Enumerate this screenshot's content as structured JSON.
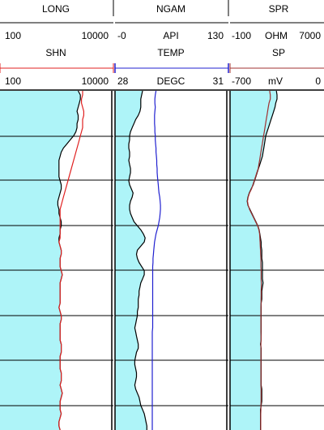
{
  "colors": {
    "fill": "#aef4f8",
    "line_black": "#000000",
    "line_red": "#e02020",
    "line_blue": "#2020d0",
    "line_darkred": "#a03030",
    "grid": "#000000"
  },
  "tracks": [
    {
      "id": "resistivity",
      "curves": [
        {
          "name": "LONG",
          "scale_left": "100",
          "unit": "",
          "scale_right": "10000",
          "color": "#000000"
        },
        {
          "name": "SHN",
          "scale_left": "100",
          "unit": "",
          "scale_right": "10000",
          "color": "#e02020"
        }
      ]
    },
    {
      "id": "gamma-temp",
      "curves": [
        {
          "name": "NGAM",
          "scale_left": "-0",
          "unit": "API",
          "scale_right": "130",
          "color": "#000000"
        },
        {
          "name": "TEMP",
          "scale_left": "28",
          "unit": "DEGC",
          "scale_right": "31",
          "color": "#2020d0"
        }
      ]
    },
    {
      "id": "spr-sp",
      "curves": [
        {
          "name": "SPR",
          "scale_left": "-100",
          "unit": "OHM",
          "scale_right": "7000",
          "color": "#000000"
        },
        {
          "name": "SP",
          "scale_left": "-700",
          "unit": "mV",
          "scale_right": "0",
          "color": "#a03030"
        }
      ]
    }
  ],
  "chart_data": {
    "type": "line",
    "depth_axis": "index (top to bottom)",
    "samples": [
      0,
      5,
      10,
      15,
      20,
      25,
      30,
      35,
      40,
      45,
      50,
      55,
      60,
      65,
      70,
      75,
      80,
      85,
      90,
      95,
      100,
      105,
      110,
      115,
      120,
      125,
      130,
      135,
      140,
      145,
      150,
      155,
      160,
      165,
      170,
      175,
      180,
      185,
      190,
      195,
      200,
      205,
      210,
      215,
      220,
      225,
      230,
      235,
      240,
      245,
      250,
      255,
      260,
      265,
      270,
      275,
      280,
      285,
      290,
      295,
      300,
      305,
      310,
      315,
      320,
      325,
      330,
      335,
      340,
      345,
      350,
      355,
      360,
      365,
      370,
      375,
      380,
      385,
      390,
      395,
      400,
      405,
      410,
      415
    ],
    "series": [
      {
        "name": "LONG",
        "track": 0,
        "xlim": [
          100,
          10000
        ],
        "fill": "left",
        "values": [
          7020,
          7220,
          7220,
          7120,
          7020,
          6920,
          7020,
          7020,
          6920,
          6920,
          6820,
          6620,
          6320,
          6020,
          5720,
          5520,
          5420,
          5320,
          5320,
          5320,
          5320,
          5320,
          5420,
          5520,
          5520,
          5420,
          5320,
          5220,
          5220,
          5320,
          5320,
          5420,
          5520,
          5520,
          5420,
          5420,
          5320,
          5320,
          5420,
          5520,
          5520,
          5420,
          5420,
          5420,
          5520,
          5620,
          5520,
          5420,
          5420,
          5420,
          5420,
          5420,
          5420,
          5320,
          5420,
          5520,
          5520,
          5420,
          5420,
          5420,
          5420,
          5420,
          5520,
          5520,
          5520,
          5420,
          5420,
          5420,
          5420,
          5520,
          5520,
          5520,
          5420,
          5520,
          5620,
          5520,
          5420,
          5420,
          5420,
          5520,
          5420,
          5320,
          5320,
          5420
        ]
      },
      {
        "name": "SHN",
        "track": 0,
        "xlim": [
          100,
          10000
        ],
        "values": [
          7420,
          7420,
          7320,
          7320,
          7420,
          7520,
          7520,
          7420,
          7420,
          7420,
          7320,
          7220,
          7120,
          7020,
          6920,
          6820,
          6720,
          6620,
          6520,
          6420,
          6320,
          6220,
          6120,
          6020,
          5920,
          5820,
          5720,
          5620,
          5520,
          5420,
          5420,
          5420,
          5420,
          5420,
          5420,
          5420,
          5420,
          5320,
          5420,
          5520,
          5520,
          5420,
          5420,
          5420,
          5520,
          5620,
          5520,
          5420,
          5420,
          5420,
          5420,
          5420,
          5420,
          5320,
          5420,
          5520,
          5520,
          5420,
          5420,
          5420,
          5420,
          5420,
          5520,
          5520,
          5520,
          5420,
          5420,
          5420,
          5420,
          5520,
          5520,
          5520,
          5420,
          5520,
          5620,
          5520,
          5420,
          5420,
          5420,
          5520,
          5420,
          5320,
          5320,
          5420
        ]
      },
      {
        "name": "NGAM",
        "track": 1,
        "xlim": [
          0,
          130
        ],
        "fill": "left",
        "values": [
          32,
          31,
          30,
          30,
          30,
          29,
          27,
          24,
          22,
          20,
          18,
          17,
          17,
          16,
          16,
          17,
          17,
          16,
          17,
          18,
          18,
          17,
          16,
          17,
          19,
          21,
          20,
          18,
          17,
          17,
          18,
          20,
          22,
          26,
          30,
          33,
          35,
          34,
          30,
          26,
          25,
          26,
          28,
          31,
          34,
          34,
          32,
          30,
          29,
          28,
          28,
          27,
          27,
          27,
          26,
          26,
          25,
          24,
          23,
          24,
          25,
          26,
          27,
          27,
          25,
          24,
          23,
          23,
          24,
          25,
          25,
          24,
          23,
          24,
          26,
          28,
          29,
          30,
          32,
          34,
          35,
          36,
          37,
          37
        ]
      },
      {
        "name": "TEMP",
        "track": 1,
        "xlim": [
          28,
          31
        ],
        "values": [
          29.1,
          29.08,
          29.07,
          29.07,
          29.08,
          29.07,
          29.06,
          29.06,
          29.06,
          29.07,
          29.07,
          29.08,
          29.08,
          29.09,
          29.1,
          29.1,
          29.11,
          29.12,
          29.12,
          29.13,
          29.13,
          29.14,
          29.15,
          29.16,
          29.17,
          29.18,
          29.2,
          29.21,
          29.22,
          29.22,
          29.21,
          29.2,
          29.18,
          29.16,
          29.13,
          29.1,
          29.08,
          29.06,
          29.05,
          29.04,
          29.03,
          29.02,
          29.02,
          29.01,
          29.01,
          29.01,
          29.01,
          29.01,
          29.01,
          29.01,
          29.01,
          29.01,
          29.01,
          29.01,
          29.01,
          29.01,
          29.01,
          29.01,
          29.01,
          29.0,
          29.0,
          29.0,
          29.0,
          29.0,
          29.0,
          29.0,
          29.0,
          29.0,
          29.0,
          29.0,
          29.0,
          29.0,
          29.0,
          29.0,
          29.0,
          29.0,
          29.0,
          29.0,
          29.0,
          29.0,
          29.0,
          29.0,
          29.0,
          29.0
        ]
      },
      {
        "name": "SPR",
        "track": 2,
        "xlim": [
          -100,
          7000
        ],
        "fill": "left",
        "values": [
          3400,
          3450,
          3450,
          3350,
          3300,
          3200,
          3100,
          3000,
          2900,
          2800,
          2700,
          2600,
          2550,
          2500,
          2450,
          2400,
          2350,
          2250,
          2150,
          2050,
          1950,
          1850,
          1750,
          1650,
          1500,
          1350,
          1250,
          1200,
          1250,
          1400,
          1550,
          1700,
          1850,
          2000,
          2100,
          2150,
          2200,
          2250,
          2250,
          2300,
          2300,
          2300,
          2350,
          2350,
          2350,
          2350,
          2350,
          2400,
          2350,
          2300,
          2300,
          2300,
          2250,
          2250,
          2250,
          2250,
          2250,
          2250,
          2250,
          2250,
          2250,
          2250,
          2200,
          2250,
          2250,
          2250,
          2250,
          2250,
          2250,
          2250,
          2250,
          2250,
          2250,
          2300,
          2300,
          2300,
          2300,
          2250,
          2200,
          2200,
          2200,
          2200,
          2200,
          2200
        ]
      },
      {
        "name": "SP",
        "track": 2,
        "xlim": [
          -700,
          0
        ],
        "values": [
          -405,
          -400,
          -400,
          -410,
          -415,
          -420,
          -425,
          -430,
          -435,
          -440,
          -445,
          -450,
          -455,
          -460,
          -465,
          -470,
          -475,
          -480,
          -485,
          -490,
          -500,
          -510,
          -520,
          -530,
          -540,
          -555,
          -565,
          -570,
          -565,
          -555,
          -540,
          -525,
          -510,
          -495,
          -485,
          -480,
          -478,
          -476,
          -475,
          -473,
          -472,
          -470,
          -470,
          -470,
          -468,
          -468,
          -468,
          -467,
          -467,
          -468,
          -468,
          -469,
          -469,
          -470,
          -470,
          -470,
          -470,
          -470,
          -470,
          -470,
          -469,
          -469,
          -470,
          -470,
          -470,
          -470,
          -470,
          -470,
          -470,
          -470,
          -470,
          -470,
          -470,
          -469,
          -469,
          -469,
          -469,
          -470,
          -470,
          -471,
          -471,
          -471,
          -471,
          -471
        ]
      }
    ]
  }
}
